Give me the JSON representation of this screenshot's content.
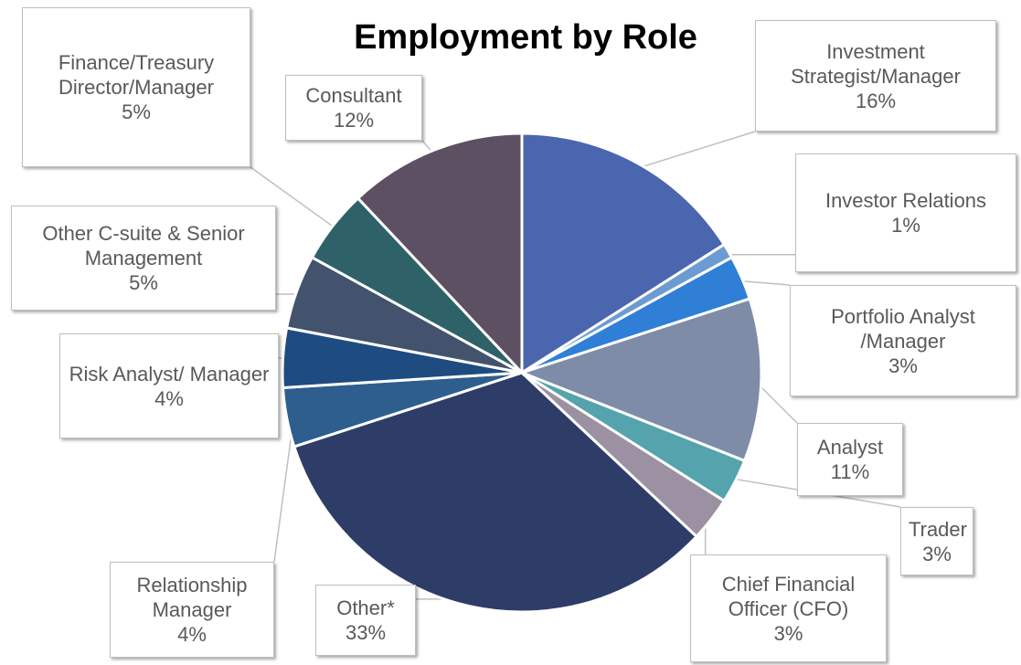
{
  "chart_data": {
    "type": "pie",
    "title": "Employment by Role",
    "categories": [
      "Investment Strategist/Manager",
      "Investor Relations",
      "Portfolio Analyst /Manager",
      "Analyst",
      "Trader",
      "Chief Financial Officer (CFO)",
      "Other*",
      "Relationship Manager",
      "Risk Analyst/ Manager",
      "Other C-suite & Senior Management",
      "Finance/Treasury Director/Manager",
      "Consultant"
    ],
    "values": [
      16,
      1,
      3,
      11,
      3,
      3,
      33,
      4,
      4,
      5,
      5,
      12
    ],
    "value_labels": [
      "16%",
      "1%",
      "3%",
      "11%",
      "3%",
      "3%",
      "33%",
      "4%",
      "4%",
      "5%",
      "5%",
      "12%"
    ],
    "colors": [
      "#4a66ae",
      "#6c9bd2",
      "#2f7fd6",
      "#7f8ca8",
      "#55a3ad",
      "#9b91a2",
      "#2e3d68",
      "#2e5e8e",
      "#1f4c80",
      "#43536e",
      "#2f6268",
      "#5d5063"
    ]
  }
}
